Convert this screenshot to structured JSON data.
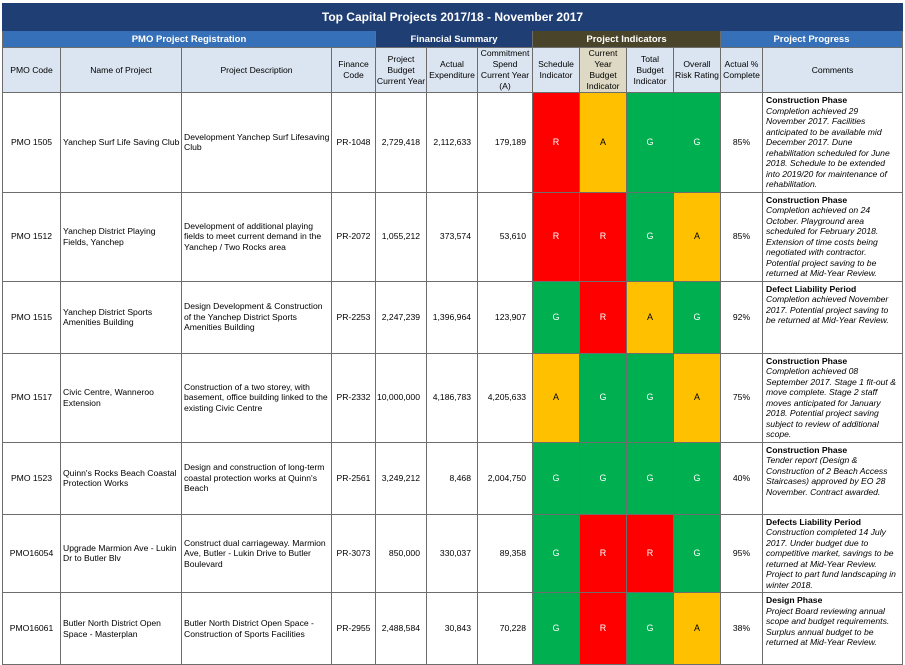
{
  "title": "Top Capital Projects 2017/18 - November 2017",
  "groups": {
    "registration": "PMO Project Registration",
    "financial": "Financial Summary",
    "indicators": "Project Indicators",
    "progress": "Project Progress"
  },
  "headers": {
    "pmo_code": "PMO Code",
    "name": "Name of Project",
    "description": "Project Description",
    "finance_code": "Finance Code",
    "budget": "Project Budget Current Year",
    "actual": "Actual Expenditure",
    "commitment": "Commitment Spend Current Year (A)",
    "schedule": "Schedule Indicator",
    "cy_budget": "Current Year Budget Indicator",
    "total_budget": "Total Budget Indicator",
    "risk": "Overall Risk Rating",
    "pct": "Actual % Complete",
    "comments": "Comments"
  },
  "colors": {
    "R": "#ff0000",
    "A": "#ffc000",
    "G": "#00b050",
    "title_bg": "#1f3f74",
    "group_blue": "#3570b8",
    "group_olive": "#4a452a",
    "header_bg": "#dbe5f1",
    "header_tan": "#ddd9c4"
  },
  "rows": [
    {
      "code": "PMO 1505",
      "name": "Yanchep Surf Life Saving Club",
      "description": "Development Yanchep Surf Lifesaving Club",
      "finance_code": "PR-1048",
      "budget": "2,729,418",
      "actual": "2,112,633",
      "commitment": "179,189",
      "schedule": "R",
      "cy_budget": "A",
      "total_budget": "G",
      "risk": "G",
      "pct": "85%",
      "phase": "Construction Phase",
      "comment": "Completion achieved 29 November 2017. Facilities anticipated to be available mid December 2017. Dune rehabilitation scheduled for June 2018. Schedule to be extended into 2019/20 for maintenance of rehabilitation."
    },
    {
      "code": "PMO 1512",
      "name": "Yanchep District Playing Fields, Yanchep",
      "description": "Development of additional playing fields to meet current demand in the Yanchep / Two Rocks area",
      "finance_code": "PR-2072",
      "budget": "1,055,212",
      "actual": "373,574",
      "commitment": "53,610",
      "schedule": "R",
      "cy_budget": "R",
      "total_budget": "G",
      "risk": "A",
      "pct": "85%",
      "phase": "Construction Phase",
      "comment": "Completion achieved on 24 October. Playground area scheduled for February 2018. Extension of time costs being negotiated with contractor. Potential project saving to be returned at Mid-Year Review."
    },
    {
      "code": "PMO 1515",
      "name": "Yanchep District Sports Amenities Building",
      "description": "Design Development & Construction of the Yanchep District Sports Amenities Building",
      "finance_code": "PR-2253",
      "budget": "2,247,239",
      "actual": "1,396,964",
      "commitment": "123,907",
      "schedule": "G",
      "cy_budget": "R",
      "total_budget": "A",
      "risk": "G",
      "pct": "92%",
      "phase": "Defect Liability Period",
      "comment": "Completion achieved November 2017. Potential project saving to be returned at Mid-Year Review."
    },
    {
      "code": "PMO 1517",
      "name": "Civic Centre, Wanneroo Extension",
      "description": "Construction of a two storey, with basement, office building linked to the existing Civic Centre",
      "finance_code": "PR-2332",
      "budget": "10,000,000",
      "actual": "4,186,783",
      "commitment": "4,205,633",
      "schedule": "A",
      "cy_budget": "G",
      "total_budget": "G",
      "risk": "A",
      "pct": "75%",
      "phase": "Construction Phase",
      "comment": "Completion achieved 08 September 2017. Stage 1 fit-out & move complete. Stage 2 staff moves anticipated for January 2018. Potential project saving subject to review of additional scope."
    },
    {
      "code": "PMO 1523",
      "name": "Quinn's Rocks Beach Coastal Protection Works",
      "description": "Design and construction of long-term coastal protection works at Quinn's Beach",
      "finance_code": "PR-2561",
      "budget": "3,249,212",
      "actual": "8,468",
      "commitment": "2,004,750",
      "schedule": "G",
      "cy_budget": "G",
      "total_budget": "G",
      "risk": "G",
      "pct": "40%",
      "phase": "Construction Phase",
      "comment": "Tender report (Design & Construction of 2 Beach Access Staircases) approved by EO 28 November. Contract awarded."
    },
    {
      "code": "PMO16054",
      "name": "Upgrade Marmion Ave - Lukin Dr to Butler Blv",
      "description": "Construct dual carriageway. Marmion Ave, Butler - Lukin Drive to Butler Boulevard",
      "finance_code": "PR-3073",
      "budget": "850,000",
      "actual": "330,037",
      "commitment": "89,358",
      "schedule": "G",
      "cy_budget": "R",
      "total_budget": "R",
      "risk": "G",
      "pct": "95%",
      "phase": "Defects Liability Period",
      "comment": "Construction completed 14 July 2017. Under budget due to competitive market, savings to be returned at Mid-Year Review. Project to part fund landscaping in winter 2018."
    },
    {
      "code": "PMO16061",
      "name": "Butler North District Open Space - Masterplan",
      "description": "Butler North District Open Space - Construction of Sports Facilities",
      "finance_code": "PR-2955",
      "budget": "2,488,584",
      "actual": "30,843",
      "commitment": "70,228",
      "schedule": "G",
      "cy_budget": "R",
      "total_budget": "G",
      "risk": "A",
      "pct": "38%",
      "phase": "Design Phase",
      "comment": "Project Board reviewing annual scope and budget requirements. Surplus annual budget to be returned at Mid-Year Review."
    }
  ]
}
